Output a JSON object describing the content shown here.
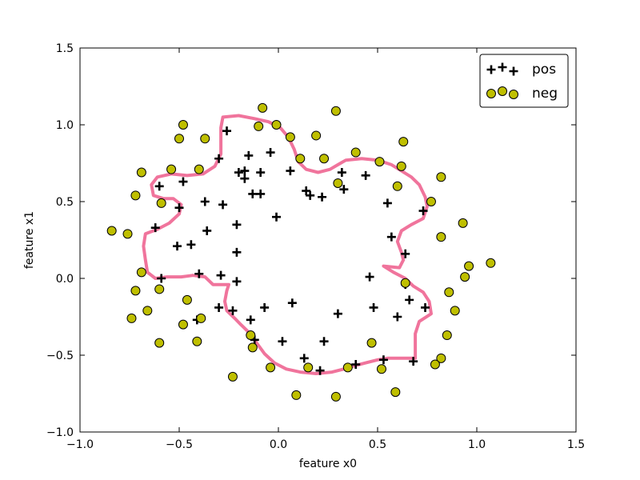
{
  "chart_data": {
    "type": "scatter",
    "title": "",
    "xlabel": "feature x0",
    "ylabel": "feature x1",
    "xlim": [
      -1.0,
      1.5
    ],
    "ylim": [
      -1.0,
      1.5
    ],
    "x_ticks": [
      -1.0,
      -0.5,
      0.0,
      0.5,
      1.0,
      1.5
    ],
    "y_ticks": [
      -1.0,
      -0.5,
      0.0,
      0.5,
      1.0,
      1.5
    ],
    "x_tick_labels": [
      "−1.0",
      "−0.5",
      "0.0",
      "0.5",
      "1.0",
      "1.5"
    ],
    "y_tick_labels": [
      "−1.0",
      "−0.5",
      "0.0",
      "0.5",
      "1.0",
      "1.5"
    ],
    "grid": false,
    "legend_position": "top-right",
    "series": [
      {
        "name": "pos",
        "marker": "plus",
        "color": "#000000",
        "points": [
          [
            -0.3,
            0.78
          ],
          [
            -0.26,
            0.96
          ],
          [
            -0.15,
            0.8
          ],
          [
            -0.04,
            0.82
          ],
          [
            -0.2,
            0.69
          ],
          [
            -0.17,
            0.7
          ],
          [
            -0.17,
            0.65
          ],
          [
            -0.09,
            0.69
          ],
          [
            0.06,
            0.7
          ],
          [
            0.32,
            0.69
          ],
          [
            0.44,
            0.67
          ],
          [
            -0.6,
            0.6
          ],
          [
            -0.48,
            0.63
          ],
          [
            -0.13,
            0.55
          ],
          [
            -0.09,
            0.55
          ],
          [
            0.14,
            0.57
          ],
          [
            0.16,
            0.54
          ],
          [
            0.22,
            0.53
          ],
          [
            0.33,
            0.58
          ],
          [
            -0.5,
            0.46
          ],
          [
            -0.37,
            0.5
          ],
          [
            -0.28,
            0.48
          ],
          [
            0.55,
            0.49
          ],
          [
            0.73,
            0.44
          ],
          [
            -0.62,
            0.33
          ],
          [
            -0.36,
            0.31
          ],
          [
            -0.21,
            0.35
          ],
          [
            -0.01,
            0.4
          ],
          [
            0.57,
            0.27
          ],
          [
            -0.51,
            0.21
          ],
          [
            -0.44,
            0.22
          ],
          [
            -0.21,
            0.17
          ],
          [
            0.64,
            0.16
          ],
          [
            -0.59,
            0.0
          ],
          [
            -0.4,
            0.03
          ],
          [
            -0.29,
            0.02
          ],
          [
            -0.21,
            -0.02
          ],
          [
            0.46,
            0.01
          ],
          [
            0.64,
            -0.04
          ],
          [
            -0.3,
            -0.19
          ],
          [
            -0.23,
            -0.21
          ],
          [
            -0.07,
            -0.19
          ],
          [
            0.07,
            -0.16
          ],
          [
            0.48,
            -0.19
          ],
          [
            0.66,
            -0.14
          ],
          [
            0.74,
            -0.19
          ],
          [
            -0.41,
            -0.27
          ],
          [
            -0.14,
            -0.27
          ],
          [
            0.3,
            -0.23
          ],
          [
            0.6,
            -0.25
          ],
          [
            -0.12,
            -0.4
          ],
          [
            0.02,
            -0.41
          ],
          [
            0.23,
            -0.41
          ],
          [
            0.13,
            -0.52
          ],
          [
            0.53,
            -0.53
          ],
          [
            0.68,
            -0.54
          ],
          [
            0.21,
            -0.6
          ],
          [
            0.39,
            -0.56
          ]
        ]
      },
      {
        "name": "neg",
        "marker": "circle",
        "color": "#bfbf00",
        "points": [
          [
            -0.08,
            1.11
          ],
          [
            0.29,
            1.09
          ],
          [
            -0.48,
            1.0
          ],
          [
            -0.1,
            0.99
          ],
          [
            -0.01,
            1.0
          ],
          [
            -0.5,
            0.91
          ],
          [
            -0.37,
            0.91
          ],
          [
            0.06,
            0.92
          ],
          [
            0.19,
            0.93
          ],
          [
            0.63,
            0.89
          ],
          [
            0.39,
            0.82
          ],
          [
            0.11,
            0.78
          ],
          [
            0.23,
            0.78
          ],
          [
            0.51,
            0.76
          ],
          [
            -0.69,
            0.69
          ],
          [
            -0.54,
            0.71
          ],
          [
            -0.4,
            0.71
          ],
          [
            0.62,
            0.73
          ],
          [
            0.82,
            0.66
          ],
          [
            0.3,
            0.62
          ],
          [
            0.6,
            0.6
          ],
          [
            -0.72,
            0.54
          ],
          [
            -0.59,
            0.49
          ],
          [
            0.77,
            0.5
          ],
          [
            0.93,
            0.36
          ],
          [
            -0.84,
            0.31
          ],
          [
            -0.76,
            0.29
          ],
          [
            0.82,
            0.27
          ],
          [
            0.96,
            0.08
          ],
          [
            1.07,
            0.1
          ],
          [
            -0.69,
            0.04
          ],
          [
            0.94,
            0.01
          ],
          [
            -0.72,
            -0.08
          ],
          [
            -0.6,
            -0.07
          ],
          [
            0.64,
            -0.03
          ],
          [
            0.86,
            -0.09
          ],
          [
            -0.66,
            -0.21
          ],
          [
            -0.46,
            -0.14
          ],
          [
            0.89,
            -0.21
          ],
          [
            -0.74,
            -0.26
          ],
          [
            -0.48,
            -0.3
          ],
          [
            -0.39,
            -0.26
          ],
          [
            -0.14,
            -0.37
          ],
          [
            0.85,
            -0.37
          ],
          [
            -0.6,
            -0.42
          ],
          [
            -0.41,
            -0.41
          ],
          [
            -0.13,
            -0.45
          ],
          [
            0.47,
            -0.42
          ],
          [
            0.82,
            -0.52
          ],
          [
            -0.04,
            -0.58
          ],
          [
            0.15,
            -0.58
          ],
          [
            0.35,
            -0.58
          ],
          [
            0.52,
            -0.59
          ],
          [
            0.79,
            -0.56
          ],
          [
            -0.23,
            -0.64
          ],
          [
            0.09,
            -0.76
          ],
          [
            0.29,
            -0.77
          ],
          [
            0.59,
            -0.74
          ]
        ]
      }
    ],
    "decision_boundary": {
      "color": "#f0749c",
      "points": [
        [
          -0.28,
          1.05
        ],
        [
          -0.2,
          1.06
        ],
        [
          -0.12,
          1.04
        ],
        [
          -0.05,
          1.02
        ],
        [
          0.01,
          0.98
        ],
        [
          0.05,
          0.92
        ],
        [
          0.08,
          0.84
        ],
        [
          0.1,
          0.76
        ],
        [
          0.14,
          0.71
        ],
        [
          0.2,
          0.69
        ],
        [
          0.26,
          0.71
        ],
        [
          0.3,
          0.74
        ],
        [
          0.34,
          0.77
        ],
        [
          0.42,
          0.78
        ],
        [
          0.5,
          0.77
        ],
        [
          0.57,
          0.74
        ],
        [
          0.62,
          0.7
        ],
        [
          0.67,
          0.66
        ],
        [
          0.71,
          0.61
        ],
        [
          0.74,
          0.53
        ],
        [
          0.75,
          0.47
        ],
        [
          0.73,
          0.39
        ],
        [
          0.67,
          0.35
        ],
        [
          0.62,
          0.31
        ],
        [
          0.6,
          0.24
        ],
        [
          0.62,
          0.17
        ],
        [
          0.63,
          0.12
        ],
        [
          0.61,
          0.07
        ],
        [
          0.53,
          0.08
        ],
        [
          0.58,
          0.04
        ],
        [
          0.64,
          0.0
        ],
        [
          0.68,
          -0.05
        ],
        [
          0.73,
          -0.09
        ],
        [
          0.76,
          -0.15
        ],
        [
          0.77,
          -0.23
        ],
        [
          0.71,
          -0.28
        ],
        [
          0.69,
          -0.36
        ],
        [
          0.69,
          -0.46
        ],
        [
          0.69,
          -0.52
        ],
        [
          0.62,
          -0.52
        ],
        [
          0.55,
          -0.52
        ],
        [
          0.5,
          -0.53
        ],
        [
          0.44,
          -0.55
        ],
        [
          0.38,
          -0.57
        ],
        [
          0.33,
          -0.59
        ],
        [
          0.27,
          -0.61
        ],
        [
          0.19,
          -0.62
        ],
        [
          0.11,
          -0.61
        ],
        [
          0.04,
          -0.59
        ],
        [
          -0.02,
          -0.55
        ],
        [
          -0.07,
          -0.49
        ],
        [
          -0.11,
          -0.42
        ],
        [
          -0.15,
          -0.35
        ],
        [
          -0.19,
          -0.3
        ],
        [
          -0.22,
          -0.26
        ],
        [
          -0.26,
          -0.21
        ],
        [
          -0.27,
          -0.15
        ],
        [
          -0.26,
          -0.08
        ],
        [
          -0.25,
          -0.04
        ],
        [
          -0.28,
          -0.04
        ],
        [
          -0.33,
          -0.04
        ],
        [
          -0.37,
          0.01
        ],
        [
          -0.43,
          0.02
        ],
        [
          -0.49,
          0.01
        ],
        [
          -0.56,
          0.01
        ],
        [
          -0.62,
          0.0
        ],
        [
          -0.66,
          0.04
        ],
        [
          -0.67,
          0.12
        ],
        [
          -0.68,
          0.21
        ],
        [
          -0.67,
          0.29
        ],
        [
          -0.61,
          0.32
        ],
        [
          -0.55,
          0.36
        ],
        [
          -0.5,
          0.42
        ],
        [
          -0.49,
          0.48
        ],
        [
          -0.53,
          0.52
        ],
        [
          -0.58,
          0.52
        ],
        [
          -0.63,
          0.54
        ],
        [
          -0.64,
          0.61
        ],
        [
          -0.61,
          0.66
        ],
        [
          -0.54,
          0.68
        ],
        [
          -0.46,
          0.67
        ],
        [
          -0.38,
          0.68
        ],
        [
          -0.32,
          0.73
        ],
        [
          -0.29,
          0.81
        ],
        [
          -0.29,
          0.9
        ],
        [
          -0.29,
          0.98
        ],
        [
          -0.28,
          1.05
        ]
      ]
    }
  },
  "legend": {
    "items": [
      {
        "label": "pos",
        "marker": "plus",
        "color": "#000000"
      },
      {
        "label": "neg",
        "marker": "circle",
        "color": "#bfbf00"
      }
    ]
  }
}
